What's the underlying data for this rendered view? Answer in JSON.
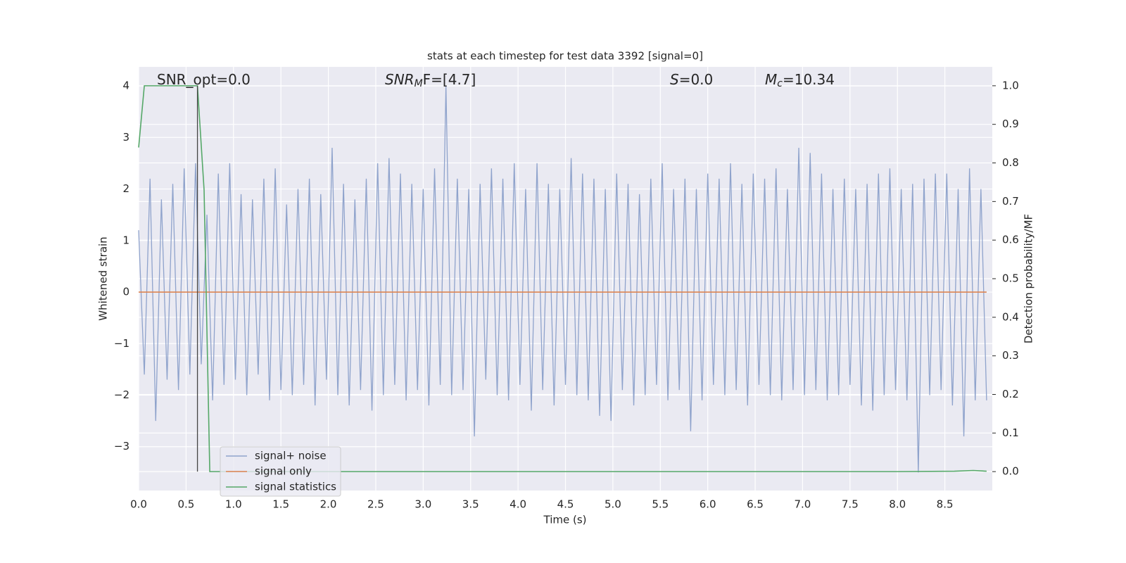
{
  "chart_data": {
    "type": "line",
    "title": "stats at each timestep for test data 3392 [signal=0]",
    "xlabel": "Time (s)",
    "ylabel": "Whitened strain",
    "y2label": "Detection probability/MF",
    "annotations": [
      {
        "text": "SNR_opt=0.0"
      },
      {
        "text": "SNR",
        "sub": "M",
        "tail": "F=[4.7]"
      },
      {
        "text": "S",
        "tail": "=0.0"
      },
      {
        "text": "M",
        "sub": "c",
        "tail": "=10.34"
      }
    ],
    "xlim": [
      0,
      9.0
    ],
    "ylim": [
      -3.85,
      4.37
    ],
    "y2lim": [
      -0.049,
      1.049
    ],
    "xticks": [
      {
        "value": 0,
        "label": "0.0"
      },
      0.5,
      {
        "value": 1,
        "label": "1.0"
      },
      1.5,
      {
        "value": 2,
        "label": "2.0"
      },
      2.5,
      {
        "value": 3,
        "label": "3.0"
      },
      3.5,
      {
        "value": 4,
        "label": "4.0"
      },
      4.5,
      {
        "value": 5,
        "label": "5.0"
      },
      5.5,
      {
        "value": 6,
        "label": "6.0"
      },
      6.5,
      {
        "value": 7,
        "label": "7.0"
      },
      7.5,
      {
        "value": 8,
        "label": "8.0"
      },
      8.5
    ],
    "yticks": [
      {
        "value": -3,
        "label": "−3"
      },
      {
        "value": -2,
        "label": "−2"
      },
      {
        "value": -1,
        "label": "−1"
      },
      0,
      1,
      2,
      3,
      4
    ],
    "y2ticks": [
      {
        "value": 0,
        "label": "0.0"
      },
      0.1,
      0.2,
      0.3,
      0.4,
      0.5,
      0.6,
      0.7,
      0.8,
      0.9,
      {
        "value": 1,
        "label": "1.0"
      }
    ],
    "grid": true,
    "legend_loc": "lower left",
    "background": "#eaeaf2",
    "vline": {
      "x": 0.62,
      "y2": [
        0,
        1.0
      ],
      "color": "#444444"
    },
    "series": [
      {
        "name": "signal+ noise",
        "color": "#8fa3cc",
        "x": [
          0.0,
          0.06,
          0.12,
          0.18,
          0.24,
          0.3,
          0.36,
          0.42,
          0.48,
          0.54,
          0.6,
          0.66,
          0.72,
          0.78,
          0.84,
          0.9,
          0.96,
          1.02,
          1.08,
          1.14,
          1.2,
          1.26,
          1.32,
          1.38,
          1.44,
          1.5,
          1.56,
          1.62,
          1.68,
          1.74,
          1.8,
          1.86,
          1.92,
          1.98,
          2.04,
          2.1,
          2.16,
          2.22,
          2.28,
          2.34,
          2.4,
          2.46,
          2.52,
          2.58,
          2.64,
          2.7,
          2.76,
          2.82,
          2.88,
          2.94,
          3.0,
          3.06,
          3.12,
          3.18,
          3.24,
          3.3,
          3.36,
          3.42,
          3.48,
          3.54,
          3.6,
          3.66,
          3.72,
          3.78,
          3.84,
          3.9,
          3.96,
          4.02,
          4.08,
          4.14,
          4.2,
          4.26,
          4.32,
          4.38,
          4.44,
          4.5,
          4.56,
          4.62,
          4.68,
          4.74,
          4.8,
          4.86,
          4.92,
          4.98,
          5.04,
          5.1,
          5.16,
          5.22,
          5.28,
          5.34,
          5.4,
          5.46,
          5.52,
          5.58,
          5.64,
          5.7,
          5.76,
          5.82,
          5.88,
          5.94,
          6.0,
          6.06,
          6.12,
          6.18,
          6.24,
          6.3,
          6.36,
          6.42,
          6.48,
          6.54,
          6.6,
          6.66,
          6.72,
          6.78,
          6.84,
          6.9,
          6.96,
          7.02,
          7.08,
          7.14,
          7.2,
          7.26,
          7.32,
          7.38,
          7.44,
          7.5,
          7.56,
          7.62,
          7.68,
          7.74,
          7.8,
          7.86,
          7.92,
          7.98,
          8.04,
          8.1,
          8.16,
          8.22,
          8.28,
          8.34,
          8.4,
          8.46,
          8.52,
          8.58,
          8.64,
          8.7,
          8.76,
          8.82,
          8.88,
          8.94
        ],
        "values": [
          1.2,
          -1.6,
          2.2,
          -2.5,
          1.8,
          -1.7,
          2.1,
          -1.9,
          2.4,
          -1.6,
          2.5,
          -1.4,
          1.5,
          -2.1,
          2.3,
          -1.8,
          2.5,
          -1.7,
          1.9,
          -2.0,
          1.8,
          -1.6,
          2.2,
          -2.1,
          2.4,
          -1.9,
          1.7,
          -2.0,
          2.0,
          -1.8,
          2.2,
          -2.2,
          1.9,
          -1.7,
          2.8,
          -2.0,
          2.1,
          -2.2,
          1.8,
          -1.9,
          2.2,
          -2.3,
          2.5,
          -2.0,
          2.6,
          -1.8,
          2.3,
          -2.1,
          2.1,
          -1.9,
          2.0,
          -2.2,
          2.4,
          -1.8,
          4.0,
          -2.0,
          2.2,
          -1.9,
          2.0,
          -2.8,
          2.1,
          -1.7,
          2.4,
          -2.0,
          2.2,
          -2.1,
          2.5,
          -1.8,
          2.0,
          -2.3,
          2.5,
          -1.9,
          2.1,
          -2.2,
          2.0,
          -1.8,
          2.6,
          -2.0,
          2.3,
          -2.1,
          2.2,
          -2.4,
          2.0,
          -2.5,
          2.3,
          -1.9,
          2.1,
          -2.2,
          1.9,
          -2.0,
          2.2,
          -1.8,
          2.5,
          -2.1,
          2.0,
          -1.9,
          2.2,
          -2.7,
          2.0,
          -2.1,
          2.3,
          -1.8,
          2.2,
          -2.0,
          2.5,
          -1.9,
          2.1,
          -2.2,
          2.3,
          -1.8,
          2.2,
          -2.0,
          2.4,
          -2.1,
          2.0,
          -1.9,
          2.8,
          -2.0,
          2.7,
          -1.9,
          2.3,
          -2.1,
          2.0,
          -2.0,
          2.2,
          -1.8,
          2.0,
          -2.2,
          2.1,
          -2.3,
          2.3,
          -2.0,
          2.4,
          -1.9,
          2.0,
          -2.1,
          2.1,
          -3.5,
          2.2,
          -2.0,
          2.3,
          -1.9,
          2.3,
          -2.2,
          2.0,
          -2.8,
          2.4,
          -2.1,
          2.0,
          -2.1
        ]
      },
      {
        "name": "signal only",
        "color": "#dd8452",
        "x": [
          0,
          8.94
        ],
        "values": [
          0,
          0
        ]
      },
      {
        "name": "signal statistics",
        "color": "#55a868",
        "axis": "y2",
        "x": [
          0,
          0.06,
          0.12,
          0.62,
          0.69,
          0.75,
          8.0,
          8.6,
          8.8,
          8.94
        ],
        "values": [
          0.84,
          1.0,
          1.0,
          1.0,
          0.73,
          0.0,
          0.0,
          0.001,
          0.003,
          0.001
        ]
      }
    ]
  }
}
